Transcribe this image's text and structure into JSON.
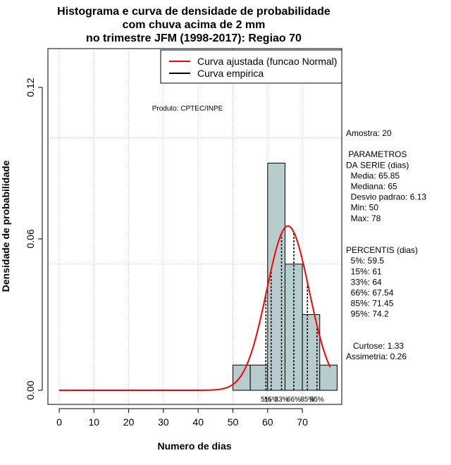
{
  "chart_data": {
    "type": "histogram",
    "title": [
      "Histograma e curva de densidade de probabilidade",
      "com chuva acima de 2 mm",
      "no trimestre JFM (1998-2017): Regiao 70"
    ],
    "xlabel": "Numero de dias",
    "ylabel": "Densidade de probabilidade",
    "xlim": [
      -3,
      80
    ],
    "ylim": [
      0,
      0.135
    ],
    "x_ticks": [
      0,
      10,
      20,
      30,
      40,
      50,
      60,
      70
    ],
    "y_ticks": [
      0.0,
      0.06,
      0.12
    ],
    "y_tick_labels": [
      "0.00",
      "0.06",
      "0.12"
    ],
    "grid": true,
    "grid_h_values": [
      0.05,
      0.1
    ],
    "bins": [
      {
        "start": 50,
        "end": 55,
        "density": 0.01
      },
      {
        "start": 55,
        "end": 60,
        "density": 0.01
      },
      {
        "start": 60,
        "end": 65,
        "density": 0.09
      },
      {
        "start": 65,
        "end": 70,
        "density": 0.05
      },
      {
        "start": 70,
        "end": 75,
        "density": 0.03
      },
      {
        "start": 75,
        "end": 80,
        "density": 0.01
      }
    ],
    "bar_color": "#b7cccc",
    "normal_curve": {
      "name": "Curva ajustada (funcao Normal)",
      "mean": 65.85,
      "sd": 6.13,
      "x_from": 0,
      "x_to": 78,
      "color": "#ff0000"
    },
    "empirical_label": "Curva empirica",
    "percentiles": [
      {
        "label": "5%",
        "value": 59.5
      },
      {
        "label": "15%",
        "value": 61
      },
      {
        "label": "33%",
        "value": 64
      },
      {
        "label": "66%",
        "value": 67.54
      },
      {
        "label": "85%",
        "value": 71.45
      },
      {
        "label": "95%",
        "value": 74.2
      }
    ],
    "legend": [
      "Curva ajustada (funcao Normal)",
      "Curva empirica"
    ],
    "legend_position": "top-right",
    "annotation": "Produto: CPTEC/INPE"
  },
  "side_panel": [
    "Amostra: 20",
    "",
    " PARAMETROS",
    "DA SERIE (dias)",
    "  Media: 65.85",
    "  Mediana: 65",
    "  Desvio padrao: 6.13",
    "  Min: 50",
    "  Max: 78",
    "",
    "",
    "PERCENTIS (dias)",
    "  5%: 59.5",
    "  15%: 61",
    "  33%: 64",
    "  66%: 67.54",
    "  85%: 71.45",
    "  95%: 74.2",
    "",
    "",
    "   Curtose: 1.33",
    "Assimetria: 0.26"
  ]
}
